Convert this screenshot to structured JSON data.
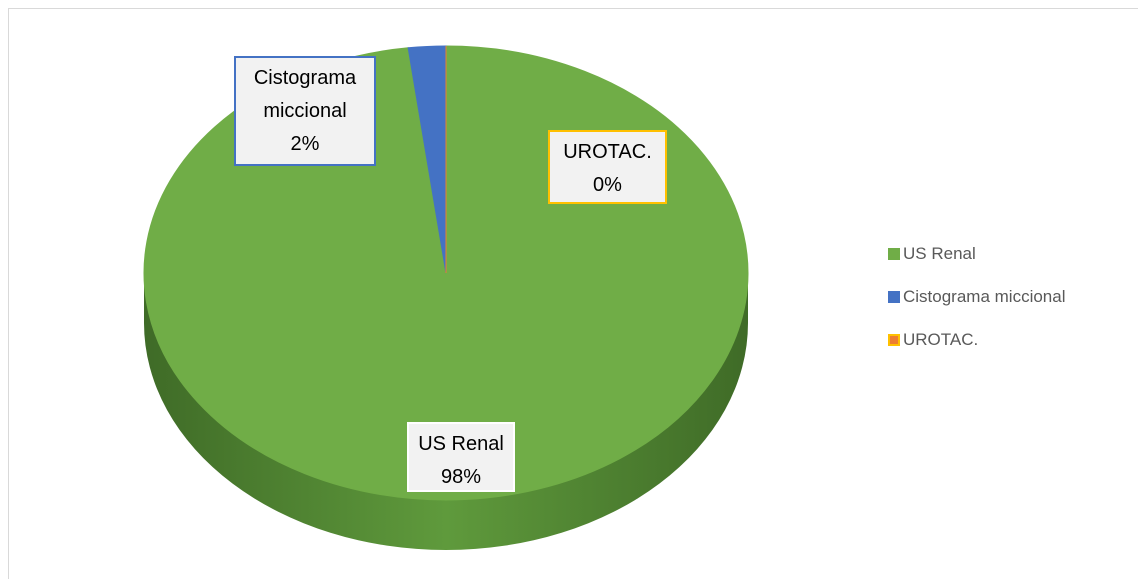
{
  "chart_data": {
    "type": "pie",
    "categories": [
      "US Renal",
      "Cistograma miccional",
      "UROTAC."
    ],
    "values": [
      98,
      2,
      0
    ],
    "value_labels": [
      "98%",
      "2%",
      "0%"
    ],
    "colors": [
      "#70ad47",
      "#4472c4",
      "#ed7d31"
    ],
    "label_borders": [
      "#ffffff",
      "#4472c4",
      "#ffc000"
    ],
    "legend": "right"
  }
}
